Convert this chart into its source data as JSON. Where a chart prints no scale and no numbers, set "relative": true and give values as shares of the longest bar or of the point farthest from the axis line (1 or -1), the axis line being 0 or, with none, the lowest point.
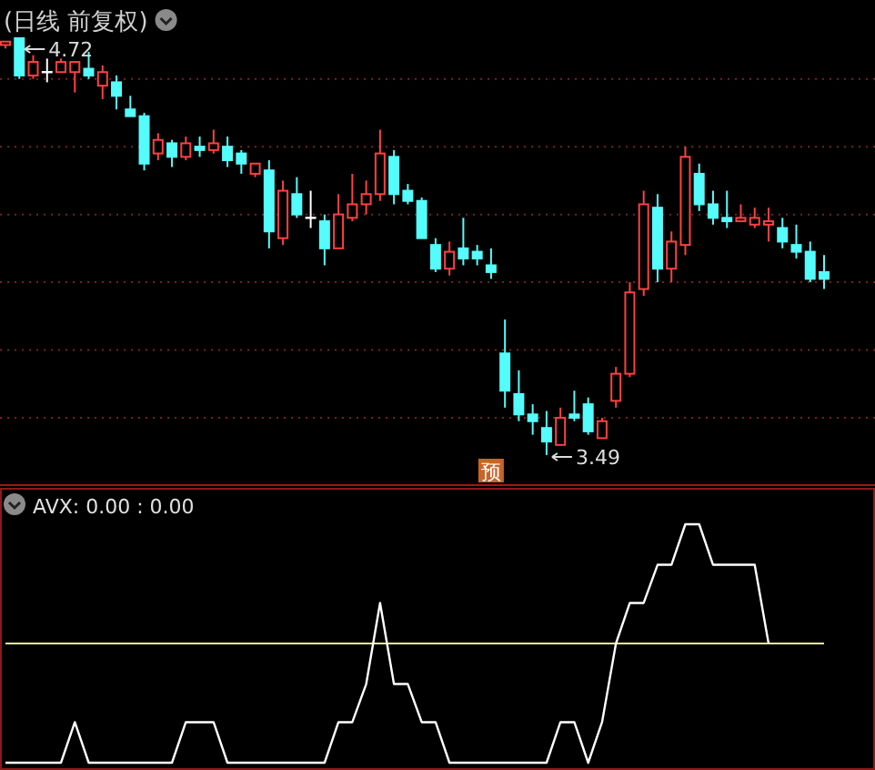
{
  "chart_data": [
    {
      "type": "candlestick",
      "title": "(日线 前复权)",
      "categories": [
        null,
        null,
        null,
        null,
        null,
        null,
        null,
        null,
        null,
        null,
        null,
        null,
        null,
        null,
        null,
        null,
        null,
        null,
        null,
        null,
        null,
        null,
        null,
        null,
        null,
        null,
        null,
        null,
        null,
        null,
        null,
        null,
        null,
        null,
        null,
        null,
        null,
        null,
        null,
        null,
        null,
        null,
        null,
        null,
        null,
        null,
        null,
        null,
        null,
        null,
        null,
        null,
        null,
        null,
        null,
        null,
        null,
        null,
        null,
        null
      ],
      "ohlc": [
        [
          4.7,
          4.71,
          4.69,
          4.71
        ],
        [
          4.72,
          4.72,
          4.6,
          4.61
        ],
        [
          4.61,
          4.67,
          4.6,
          4.65
        ],
        [
          4.62,
          4.66,
          4.59,
          4.62
        ],
        [
          4.62,
          4.66,
          4.62,
          4.65
        ],
        [
          4.62,
          4.65,
          4.56,
          4.65
        ],
        [
          4.63,
          4.68,
          4.6,
          4.61
        ],
        [
          4.58,
          4.64,
          4.54,
          4.62
        ],
        [
          4.59,
          4.61,
          4.51,
          4.55
        ],
        [
          4.51,
          4.55,
          4.49,
          4.49
        ],
        [
          4.49,
          4.5,
          4.33,
          4.35
        ],
        [
          4.38,
          4.44,
          4.36,
          4.42
        ],
        [
          4.41,
          4.42,
          4.34,
          4.37
        ],
        [
          4.37,
          4.43,
          4.36,
          4.41
        ],
        [
          4.4,
          4.43,
          4.37,
          4.39
        ],
        [
          4.39,
          4.45,
          4.38,
          4.41
        ],
        [
          4.4,
          4.43,
          4.34,
          4.36
        ],
        [
          4.38,
          4.39,
          4.32,
          4.35
        ],
        [
          4.32,
          4.35,
          4.31,
          4.35
        ],
        [
          4.33,
          4.36,
          4.1,
          4.15
        ],
        [
          4.13,
          4.3,
          4.11,
          4.27
        ],
        [
          4.26,
          4.31,
          4.19,
          4.2
        ],
        [
          4.19,
          4.27,
          4.16,
          4.19
        ],
        [
          4.18,
          4.2,
          4.05,
          4.1
        ],
        [
          4.1,
          4.26,
          4.1,
          4.2
        ],
        [
          4.19,
          4.32,
          4.18,
          4.23
        ],
        [
          4.23,
          4.3,
          4.2,
          4.26
        ],
        [
          4.26,
          4.45,
          4.24,
          4.38
        ],
        [
          4.37,
          4.39,
          4.23,
          4.26
        ],
        [
          4.27,
          4.29,
          4.23,
          4.24
        ],
        [
          4.24,
          4.25,
          4.13,
          4.13
        ],
        [
          4.11,
          4.13,
          4.03,
          4.04
        ],
        [
          4.04,
          4.12,
          4.02,
          4.09
        ],
        [
          4.1,
          4.19,
          4.05,
          4.07
        ],
        [
          4.09,
          4.11,
          4.05,
          4.07
        ],
        [
          4.05,
          4.1,
          4.01,
          4.03
        ],
        [
          3.79,
          3.89,
          3.63,
          3.68
        ],
        [
          3.67,
          3.74,
          3.59,
          3.61
        ],
        [
          3.61,
          3.64,
          3.55,
          3.59
        ],
        [
          3.57,
          3.62,
          3.49,
          3.53
        ],
        [
          3.52,
          3.63,
          3.52,
          3.6
        ],
        [
          3.61,
          3.68,
          3.59,
          3.6
        ],
        [
          3.64,
          3.66,
          3.55,
          3.56
        ],
        [
          3.54,
          3.6,
          3.54,
          3.59
        ],
        [
          3.65,
          3.75,
          3.63,
          3.73
        ],
        [
          3.73,
          4.0,
          3.72,
          3.97
        ],
        [
          3.98,
          4.27,
          3.96,
          4.23
        ],
        [
          4.22,
          4.26,
          4.0,
          4.04
        ],
        [
          4.04,
          4.15,
          4.0,
          4.12
        ],
        [
          4.11,
          4.4,
          4.08,
          4.37
        ],
        [
          4.32,
          4.35,
          4.21,
          4.23
        ],
        [
          4.23,
          4.27,
          4.17,
          4.19
        ],
        [
          4.19,
          4.27,
          4.16,
          4.18
        ],
        [
          4.18,
          4.23,
          4.18,
          4.19
        ],
        [
          4.17,
          4.22,
          4.16,
          4.19
        ],
        [
          4.17,
          4.22,
          4.12,
          4.18
        ],
        [
          4.16,
          4.19,
          4.1,
          4.12
        ],
        [
          4.11,
          4.17,
          4.07,
          4.09
        ],
        [
          4.09,
          4.12,
          4.0,
          4.01
        ],
        [
          4.03,
          4.08,
          3.98,
          4.01
        ]
      ],
      "colors": [
        "#ff4040",
        "#54fcfc",
        "#ff4040",
        "#ffffff",
        "#ff4040",
        "#ff4040",
        "#54fcfc",
        "#ff4040",
        "#54fcfc",
        "#54fcfc",
        "#54fcfc",
        "#ff4040",
        "#54fcfc",
        "#ff4040",
        "#54fcfc",
        "#ff4040",
        "#54fcfc",
        "#54fcfc",
        "#ff4040",
        "#54fcfc",
        "#ff4040",
        "#54fcfc",
        "#ffffff",
        "#54fcfc",
        "#ff4040",
        "#ff4040",
        "#ff4040",
        "#ff4040",
        "#54fcfc",
        "#54fcfc",
        "#54fcfc",
        "#54fcfc",
        "#ff4040",
        "#54fcfc",
        "#54fcfc",
        "#54fcfc",
        "#54fcfc",
        "#54fcfc",
        "#54fcfc",
        "#54fcfc",
        "#ff4040",
        "#54fcfc",
        "#54fcfc",
        "#ff4040",
        "#ff4040",
        "#ff4040",
        "#ff4040",
        "#54fcfc",
        "#ff4040",
        "#ff4040",
        "#54fcfc",
        "#54fcfc",
        "#54fcfc",
        "#ff4040",
        "#ff4040",
        "#ff4040",
        "#54fcfc",
        "#54fcfc",
        "#54fcfc",
        "#54fcfc"
      ],
      "yticks": [
        {
          "value": 4.6,
          "label": null
        },
        {
          "value": 4.4,
          "label": null
        },
        {
          "value": 4.2,
          "label": null
        },
        {
          "value": 4.0,
          "label": null
        },
        {
          "value": 3.8,
          "label": null
        },
        {
          "value": 3.6,
          "label": null
        }
      ],
      "grid": "y",
      "annotations": [
        "4.72",
        "3.49",
        "预"
      ]
    },
    {
      "type": "line",
      "title": "AVX: 0.00 : 0.00",
      "relative": true,
      "categories": [
        null,
        null,
        null,
        null,
        null,
        null,
        null,
        null,
        null,
        null,
        null,
        null,
        null,
        null,
        null,
        null,
        null,
        null,
        null,
        null,
        null,
        null,
        null,
        null,
        null,
        null,
        null,
        null,
        null,
        null,
        null,
        null,
        null,
        null,
        null,
        null,
        null,
        null,
        null,
        null,
        null,
        null,
        null,
        null,
        null,
        null,
        null,
        null,
        null,
        null,
        null,
        null,
        null,
        null,
        null,
        null,
        null,
        null,
        null,
        null
      ],
      "series": [
        {
          "color": "#ffffff",
          "values": [
            0,
            0,
            0,
            0,
            0,
            0.17,
            0,
            0,
            0,
            0,
            0,
            0,
            0,
            0.17,
            0.17,
            0.17,
            0,
            0,
            0,
            0,
            0,
            0,
            0,
            0,
            0.17,
            0.17,
            0.33,
            0.67,
            0.33,
            0.33,
            0.17,
            0.17,
            0,
            0,
            0,
            0,
            0,
            0,
            0,
            0,
            0.17,
            0.17,
            0,
            0.17,
            0.5,
            0.67,
            0.67,
            0.83,
            0.83,
            1,
            1,
            0.83,
            0.83,
            0.83,
            0.83,
            0.5,
            null,
            null,
            null,
            null
          ]
        }
      ],
      "ref_lines": [
        {
          "axis": "y",
          "value": 0.5,
          "color": "#f0f0a0"
        }
      ]
    }
  ]
}
